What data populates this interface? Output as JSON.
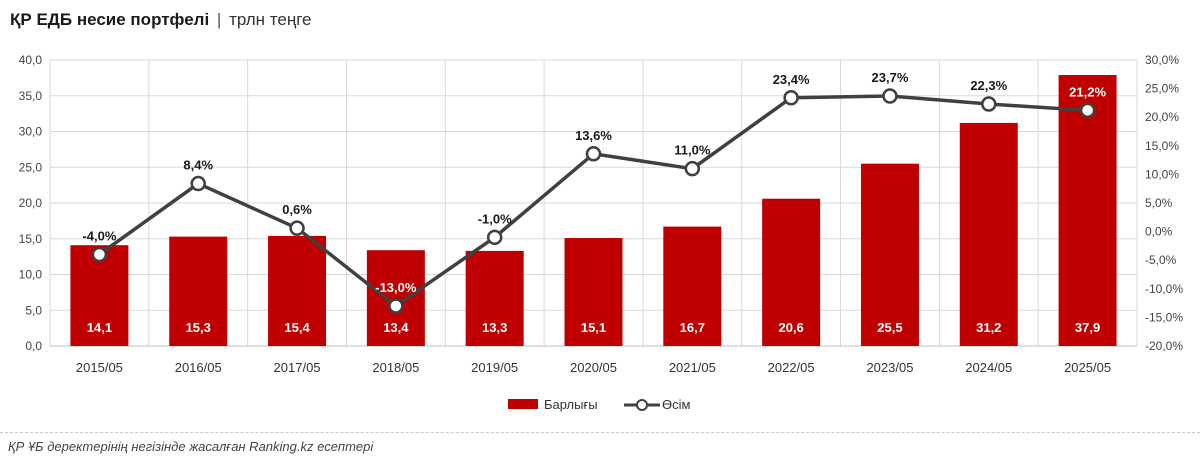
{
  "header": {
    "title": "ҚР ЕДБ несие портфелі",
    "separator": "|",
    "unit": "трлн теңге"
  },
  "footer": {
    "source": "ҚР ҰБ деректерінің негізінде жасалған Ranking.kz есептері"
  },
  "colors": {
    "bar": "#c00000",
    "line": "#404040",
    "marker_fill": "#ffffff",
    "grid": "#d9d9d9"
  },
  "chart_data": {
    "type": "bar",
    "categories": [
      "2015/05",
      "2016/05",
      "2017/05",
      "2018/05",
      "2019/05",
      "2020/05",
      "2021/05",
      "2022/05",
      "2023/05",
      "2024/05",
      "2025/05"
    ],
    "series": [
      {
        "name": "Барлығы",
        "type": "bar",
        "axis": "left",
        "values": [
          14.1,
          15.3,
          15.4,
          13.4,
          13.3,
          15.1,
          16.7,
          20.6,
          25.5,
          31.2,
          37.9
        ],
        "labels": [
          "14,1",
          "15,3",
          "15,4",
          "13,4",
          "13,3",
          "15,1",
          "16,7",
          "20,6",
          "25,5",
          "31,2",
          "37,9"
        ]
      },
      {
        "name": "Өсім",
        "type": "line",
        "axis": "right",
        "values": [
          -4.0,
          8.4,
          0.6,
          -13.0,
          -1.0,
          13.6,
          11.0,
          23.4,
          23.7,
          22.3,
          21.2
        ],
        "labels": [
          "-4,0%",
          "8,4%",
          "0,6%",
          "-13,0%",
          "-1,0%",
          "13,6%",
          "11,0%",
          "23,4%",
          "23,7%",
          "22,3%",
          "21,2%"
        ]
      }
    ],
    "y_left": {
      "lim": [
        0,
        40
      ],
      "ticks": [
        0,
        5,
        10,
        15,
        20,
        25,
        30,
        35,
        40
      ],
      "tick_labels": [
        "0,0",
        "5,0",
        "10,0",
        "15,0",
        "20,0",
        "25,0",
        "30,0",
        "35,0",
        "40,0"
      ]
    },
    "y_right": {
      "lim": [
        -20,
        30
      ],
      "ticks": [
        -20,
        -15,
        -10,
        -5,
        0,
        5,
        10,
        15,
        20,
        25,
        30
      ],
      "tick_labels": [
        "-20,0%",
        "-15,0%",
        "-10,0%",
        "-5,0%",
        "0,0%",
        "5,0%",
        "10,0%",
        "15,0%",
        "20,0%",
        "25,0%",
        "30,0%"
      ]
    },
    "grid": true,
    "legend": "bottom-center",
    "legend_items": [
      "Барлығы",
      "Өсім"
    ]
  }
}
